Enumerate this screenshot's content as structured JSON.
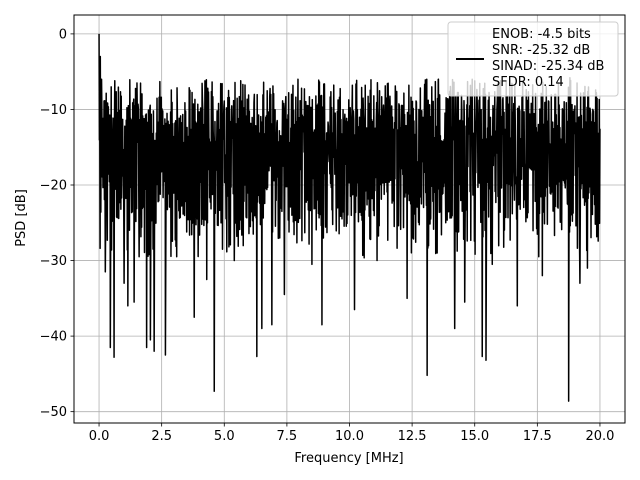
{
  "chart_data": {
    "type": "line",
    "xlabel": "Frequency [MHz]",
    "ylabel": "PSD [dB]",
    "xlim": [
      -1,
      21
    ],
    "ylim": [
      -51.5,
      2.5
    ],
    "xticks": [
      0.0,
      2.5,
      5.0,
      7.5,
      10.0,
      12.5,
      15.0,
      17.5,
      20.0
    ],
    "xtick_labels": [
      "0.0",
      "2.5",
      "5.0",
      "7.5",
      "10.0",
      "12.5",
      "15.0",
      "17.5",
      "20.0"
    ],
    "yticks": [
      0,
      -10,
      -20,
      -30,
      -40,
      -50
    ],
    "ytick_labels": [
      "0",
      "−10",
      "−20",
      "−30",
      "−40",
      "−50"
    ],
    "grid": true,
    "legend_position": "upper-right",
    "series": [
      {
        "legend_lines": [
          "ENOB: -4.5 bits",
          "SNR: -25.32 dB",
          "SINAD: -25.34 dB",
          "SFDR: 0.14"
        ],
        "color": "#000000",
        "x_range": [
          0,
          20
        ],
        "envelope": {
          "top": -6,
          "low_band": -24,
          "median": -14
        },
        "peaks": [
          {
            "x": 0.0,
            "y": 0.0
          },
          {
            "x": 0.05,
            "y": -3.0
          },
          {
            "x": 0.1,
            "y": -6.0
          },
          {
            "x": 13.55,
            "y": -6.0
          },
          {
            "x": 14.9,
            "y": -6.0
          },
          {
            "x": 18.8,
            "y": -5.8
          }
        ],
        "notches": [
          {
            "x": 0.25,
            "y": -31.5
          },
          {
            "x": 0.45,
            "y": -41.5
          },
          {
            "x": 0.6,
            "y": -42.8
          },
          {
            "x": 1.0,
            "y": -33.0
          },
          {
            "x": 1.15,
            "y": -36.0
          },
          {
            "x": 1.4,
            "y": -35.5
          },
          {
            "x": 1.6,
            "y": -29.5
          },
          {
            "x": 1.9,
            "y": -41.5
          },
          {
            "x": 2.05,
            "y": -40.5
          },
          {
            "x": 2.2,
            "y": -42.0
          },
          {
            "x": 2.65,
            "y": -42.5
          },
          {
            "x": 3.1,
            "y": -29.5
          },
          {
            "x": 3.8,
            "y": -37.5
          },
          {
            "x": 4.3,
            "y": -32.5
          },
          {
            "x": 4.6,
            "y": -47.3
          },
          {
            "x": 5.4,
            "y": -30.0
          },
          {
            "x": 6.3,
            "y": -42.7
          },
          {
            "x": 6.5,
            "y": -39.0
          },
          {
            "x": 6.9,
            "y": -38.5
          },
          {
            "x": 7.4,
            "y": -34.5
          },
          {
            "x": 8.5,
            "y": -30.5
          },
          {
            "x": 8.9,
            "y": -38.5
          },
          {
            "x": 10.2,
            "y": -36.5
          },
          {
            "x": 11.1,
            "y": -30.0
          },
          {
            "x": 12.3,
            "y": -35.0
          },
          {
            "x": 13.1,
            "y": -45.2
          },
          {
            "x": 13.5,
            "y": -29.0
          },
          {
            "x": 14.2,
            "y": -39.0
          },
          {
            "x": 14.6,
            "y": -35.5
          },
          {
            "x": 15.3,
            "y": -42.7
          },
          {
            "x": 15.45,
            "y": -43.2
          },
          {
            "x": 15.7,
            "y": -30.5
          },
          {
            "x": 16.7,
            "y": -36.0
          },
          {
            "x": 17.7,
            "y": -32.0
          },
          {
            "x": 18.75,
            "y": -48.6
          },
          {
            "x": 19.2,
            "y": -33.0
          },
          {
            "x": 19.5,
            "y": -31.0
          }
        ]
      }
    ]
  }
}
